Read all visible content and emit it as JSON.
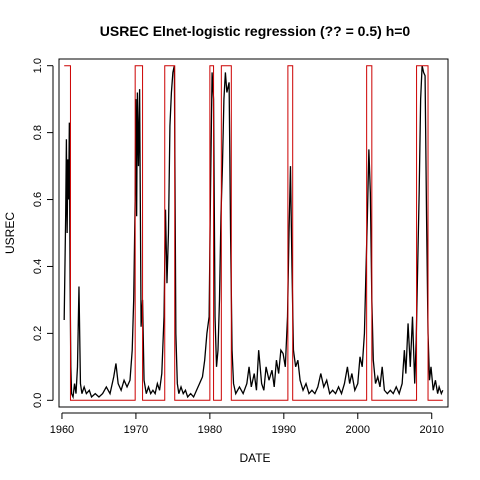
{
  "chart_data": {
    "type": "line",
    "title": "USREC Elnet-logistic regression (?? = 0.5) h=0",
    "xlabel": "DATE",
    "ylabel": "USREC",
    "xlim": [
      1959.6,
      2012.2
    ],
    "ylim": [
      -0.02,
      1.02
    ],
    "x_ticks": [
      1960,
      1970,
      1980,
      1990,
      2000,
      2010
    ],
    "x_tick_labels": [
      "1960",
      "1970",
      "1980",
      "1990",
      "2000",
      "2010"
    ],
    "y_ticks": [
      0.0,
      0.2,
      0.4,
      0.6,
      0.8,
      1.0
    ],
    "y_tick_labels": [
      "0.0",
      "0.2",
      "0.4",
      "0.6",
      "0.8",
      "1.0"
    ],
    "grid": false,
    "series": [
      {
        "color": "#000000",
        "points": [
          [
            1960.3,
            0.24
          ],
          [
            1960.5,
            0.55
          ],
          [
            1960.6,
            0.78
          ],
          [
            1960.7,
            0.5
          ],
          [
            1960.8,
            0.72
          ],
          [
            1960.9,
            0.6
          ],
          [
            1961.0,
            0.83
          ],
          [
            1961.1,
            0.35
          ],
          [
            1961.2,
            0.1
          ],
          [
            1961.3,
            0.02
          ],
          [
            1961.5,
            0.01
          ],
          [
            1961.7,
            0.05
          ],
          [
            1961.9,
            0.02
          ],
          [
            1962.1,
            0.1
          ],
          [
            1962.3,
            0.34
          ],
          [
            1962.5,
            0.05
          ],
          [
            1962.7,
            0.02
          ],
          [
            1963.0,
            0.04
          ],
          [
            1963.3,
            0.02
          ],
          [
            1963.7,
            0.03
          ],
          [
            1964.0,
            0.01
          ],
          [
            1964.5,
            0.02
          ],
          [
            1965.0,
            0.01
          ],
          [
            1965.5,
            0.02
          ],
          [
            1966.0,
            0.04
          ],
          [
            1966.5,
            0.02
          ],
          [
            1967.0,
            0.07
          ],
          [
            1967.3,
            0.11
          ],
          [
            1967.6,
            0.05
          ],
          [
            1968.0,
            0.03
          ],
          [
            1968.4,
            0.06
          ],
          [
            1968.8,
            0.04
          ],
          [
            1969.2,
            0.06
          ],
          [
            1969.5,
            0.15
          ],
          [
            1969.7,
            0.3
          ],
          [
            1969.9,
            0.6
          ],
          [
            1970.0,
            0.9
          ],
          [
            1970.1,
            0.55
          ],
          [
            1970.2,
            0.92
          ],
          [
            1970.35,
            0.7
          ],
          [
            1970.5,
            0.93
          ],
          [
            1970.7,
            0.22
          ],
          [
            1970.9,
            0.3
          ],
          [
            1971.1,
            0.06
          ],
          [
            1971.4,
            0.02
          ],
          [
            1971.7,
            0.04
          ],
          [
            1972.0,
            0.02
          ],
          [
            1972.3,
            0.03
          ],
          [
            1972.6,
            0.02
          ],
          [
            1972.9,
            0.05
          ],
          [
            1973.2,
            0.03
          ],
          [
            1973.5,
            0.08
          ],
          [
            1973.8,
            0.25
          ],
          [
            1974.0,
            0.57
          ],
          [
            1974.2,
            0.35
          ],
          [
            1974.4,
            0.5
          ],
          [
            1974.6,
            0.82
          ],
          [
            1974.8,
            0.92
          ],
          [
            1975.0,
            0.98
          ],
          [
            1975.2,
            1.0
          ],
          [
            1975.4,
            0.2
          ],
          [
            1975.6,
            0.05
          ],
          [
            1975.8,
            0.02
          ],
          [
            1976.1,
            0.04
          ],
          [
            1976.4,
            0.02
          ],
          [
            1976.7,
            0.03
          ],
          [
            1977.0,
            0.01
          ],
          [
            1977.4,
            0.02
          ],
          [
            1977.8,
            0.01
          ],
          [
            1978.2,
            0.03
          ],
          [
            1978.6,
            0.05
          ],
          [
            1979.0,
            0.07
          ],
          [
            1979.3,
            0.12
          ],
          [
            1979.6,
            0.2
          ],
          [
            1979.9,
            0.25
          ],
          [
            1980.1,
            0.65
          ],
          [
            1980.3,
            0.98
          ],
          [
            1980.5,
            0.9
          ],
          [
            1980.7,
            0.25
          ],
          [
            1980.9,
            0.1
          ],
          [
            1981.1,
            0.15
          ],
          [
            1981.3,
            0.3
          ],
          [
            1981.5,
            0.55
          ],
          [
            1981.7,
            0.7
          ],
          [
            1981.9,
            0.9
          ],
          [
            1982.1,
            0.98
          ],
          [
            1982.3,
            0.92
          ],
          [
            1982.6,
            0.95
          ],
          [
            1982.8,
            0.5
          ],
          [
            1983.0,
            0.15
          ],
          [
            1983.2,
            0.05
          ],
          [
            1983.5,
            0.02
          ],
          [
            1984.0,
            0.04
          ],
          [
            1984.5,
            0.02
          ],
          [
            1985.0,
            0.05
          ],
          [
            1985.3,
            0.1
          ],
          [
            1985.6,
            0.04
          ],
          [
            1986.0,
            0.08
          ],
          [
            1986.3,
            0.03
          ],
          [
            1986.6,
            0.15
          ],
          [
            1987.0,
            0.05
          ],
          [
            1987.3,
            0.03
          ],
          [
            1987.6,
            0.1
          ],
          [
            1988.0,
            0.06
          ],
          [
            1988.4,
            0.09
          ],
          [
            1988.7,
            0.04
          ],
          [
            1989.0,
            0.12
          ],
          [
            1989.3,
            0.08
          ],
          [
            1989.6,
            0.15
          ],
          [
            1989.9,
            0.14
          ],
          [
            1990.2,
            0.1
          ],
          [
            1990.5,
            0.25
          ],
          [
            1990.7,
            0.5
          ],
          [
            1990.9,
            0.7
          ],
          [
            1991.1,
            0.4
          ],
          [
            1991.3,
            0.15
          ],
          [
            1991.6,
            0.1
          ],
          [
            1991.9,
            0.12
          ],
          [
            1992.2,
            0.06
          ],
          [
            1992.6,
            0.03
          ],
          [
            1993.0,
            0.05
          ],
          [
            1993.4,
            0.02
          ],
          [
            1993.8,
            0.03
          ],
          [
            1994.2,
            0.02
          ],
          [
            1994.6,
            0.04
          ],
          [
            1995.0,
            0.08
          ],
          [
            1995.4,
            0.04
          ],
          [
            1995.8,
            0.06
          ],
          [
            1996.2,
            0.02
          ],
          [
            1996.6,
            0.03
          ],
          [
            1997.0,
            0.02
          ],
          [
            1997.4,
            0.04
          ],
          [
            1997.8,
            0.02
          ],
          [
            1998.2,
            0.05
          ],
          [
            1998.6,
            0.1
          ],
          [
            1998.9,
            0.05
          ],
          [
            1999.2,
            0.08
          ],
          [
            1999.6,
            0.03
          ],
          [
            2000.0,
            0.05
          ],
          [
            2000.3,
            0.13
          ],
          [
            2000.6,
            0.1
          ],
          [
            2000.9,
            0.2
          ],
          [
            2001.1,
            0.38
          ],
          [
            2001.3,
            0.55
          ],
          [
            2001.5,
            0.75
          ],
          [
            2001.7,
            0.62
          ],
          [
            2001.9,
            0.3
          ],
          [
            2002.1,
            0.12
          ],
          [
            2002.4,
            0.05
          ],
          [
            2002.7,
            0.07
          ],
          [
            2003.0,
            0.04
          ],
          [
            2003.3,
            0.1
          ],
          [
            2003.6,
            0.03
          ],
          [
            2004.0,
            0.02
          ],
          [
            2004.4,
            0.03
          ],
          [
            2004.8,
            0.02
          ],
          [
            2005.2,
            0.04
          ],
          [
            2005.6,
            0.02
          ],
          [
            2006.0,
            0.05
          ],
          [
            2006.3,
            0.15
          ],
          [
            2006.5,
            0.08
          ],
          [
            2006.8,
            0.23
          ],
          [
            2007.1,
            0.1
          ],
          [
            2007.4,
            0.25
          ],
          [
            2007.7,
            0.05
          ],
          [
            2007.9,
            0.18
          ],
          [
            2008.1,
            0.4
          ],
          [
            2008.3,
            0.62
          ],
          [
            2008.5,
            0.9
          ],
          [
            2008.7,
            1.0
          ],
          [
            2008.9,
            0.98
          ],
          [
            2009.1,
            0.97
          ],
          [
            2009.3,
            0.55
          ],
          [
            2009.5,
            0.2
          ],
          [
            2009.7,
            0.06
          ],
          [
            2009.9,
            0.1
          ],
          [
            2010.2,
            0.03
          ],
          [
            2010.5,
            0.06
          ],
          [
            2010.8,
            0.02
          ],
          [
            2011.0,
            0.04
          ],
          [
            2011.3,
            0.02
          ],
          [
            2011.5,
            0.03
          ]
        ]
      },
      {
        "color": "#cc0000",
        "style": "step",
        "points": [
          [
            1960.3,
            1
          ],
          [
            1961.15,
            1
          ],
          [
            1961.15,
            0
          ],
          [
            1969.9,
            0
          ],
          [
            1969.9,
            1
          ],
          [
            1970.9,
            1
          ],
          [
            1970.9,
            0
          ],
          [
            1973.9,
            0
          ],
          [
            1973.9,
            1
          ],
          [
            1975.25,
            1
          ],
          [
            1975.25,
            0
          ],
          [
            1980.0,
            0
          ],
          [
            1980.0,
            1
          ],
          [
            1980.5,
            1
          ],
          [
            1980.5,
            0
          ],
          [
            1981.55,
            0
          ],
          [
            1981.55,
            1
          ],
          [
            1982.9,
            1
          ],
          [
            1982.9,
            0
          ],
          [
            1990.55,
            0
          ],
          [
            1990.55,
            1
          ],
          [
            1991.2,
            1
          ],
          [
            1991.2,
            0
          ],
          [
            2001.2,
            0
          ],
          [
            2001.2,
            1
          ],
          [
            2001.9,
            1
          ],
          [
            2001.9,
            0
          ],
          [
            2007.95,
            0
          ],
          [
            2007.95,
            1
          ],
          [
            2009.5,
            1
          ],
          [
            2009.5,
            0
          ],
          [
            2011.5,
            0
          ]
        ]
      }
    ]
  }
}
